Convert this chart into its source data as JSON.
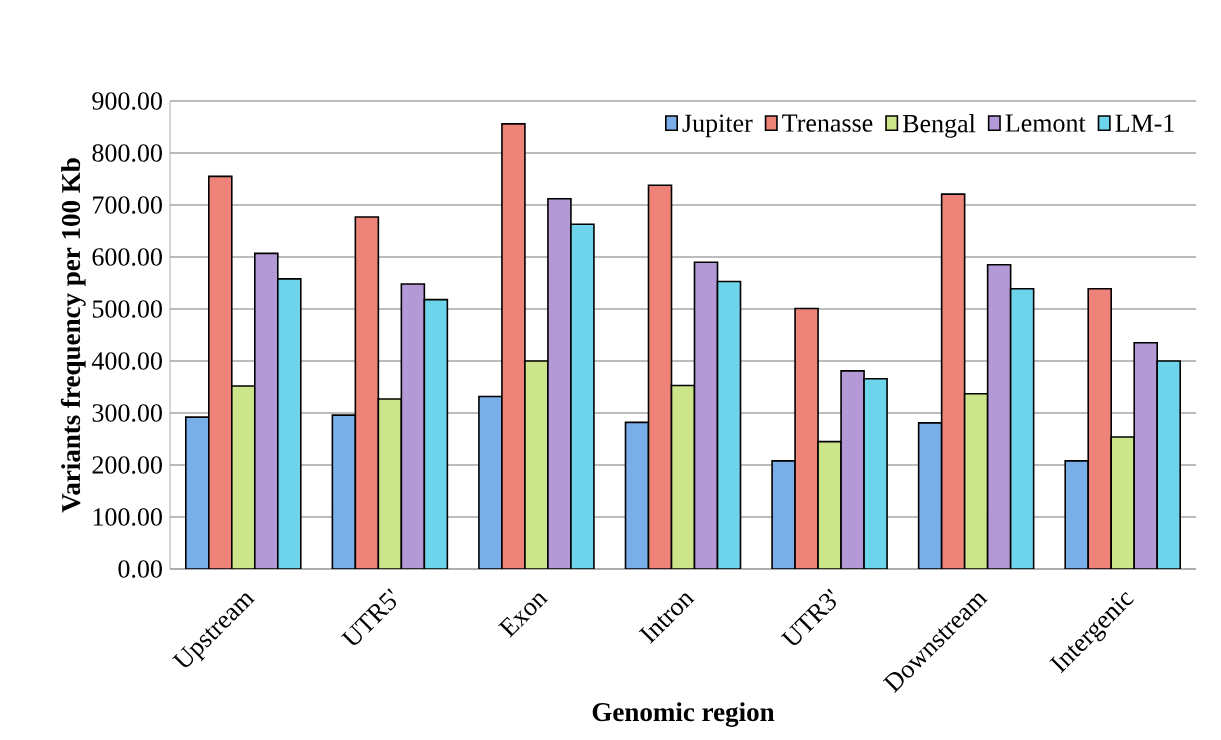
{
  "chart_data": {
    "type": "bar",
    "xlabel": "Genomic region",
    "ylabel": "Variants frequency per 100 Kb",
    "categories": [
      "Upstream",
      "UTR5'",
      "Exon",
      "Intron",
      "UTR3'",
      "Downstream",
      "Intergenic"
    ],
    "series": [
      {
        "name": "Jupiter",
        "color": "#7aaee8",
        "values": [
          292,
          296,
          332,
          282,
          208,
          281,
          208
        ]
      },
      {
        "name": "Trenasse",
        "color": "#ee837a",
        "values": [
          755,
          677,
          856,
          738,
          501,
          721,
          539
        ]
      },
      {
        "name": "Bengal",
        "color": "#cce48a",
        "values": [
          352,
          327,
          400,
          353,
          245,
          337,
          254
        ]
      },
      {
        "name": "Lemont",
        "color": "#b39ad6",
        "values": [
          607,
          548,
          712,
          590,
          381,
          585,
          435
        ]
      },
      {
        "name": "LM-1",
        "color": "#6dd4ec",
        "values": [
          558,
          518,
          663,
          553,
          366,
          539,
          400
        ]
      }
    ],
    "ylim": [
      0,
      900
    ],
    "yticks": [
      {
        "value": 0,
        "label": "0.00"
      },
      {
        "value": 100,
        "label": "100.00"
      },
      {
        "value": 200,
        "label": "200.00"
      },
      {
        "value": 300,
        "label": "300.00"
      },
      {
        "value": 400,
        "label": "400.00"
      },
      {
        "value": 500,
        "label": "500.00"
      },
      {
        "value": 600,
        "label": "600.00"
      },
      {
        "value": 700,
        "label": "700.00"
      },
      {
        "value": 800,
        "label": "800.00"
      },
      {
        "value": 900,
        "label": "900.00"
      }
    ],
    "grid": "y",
    "legend": "top right"
  }
}
